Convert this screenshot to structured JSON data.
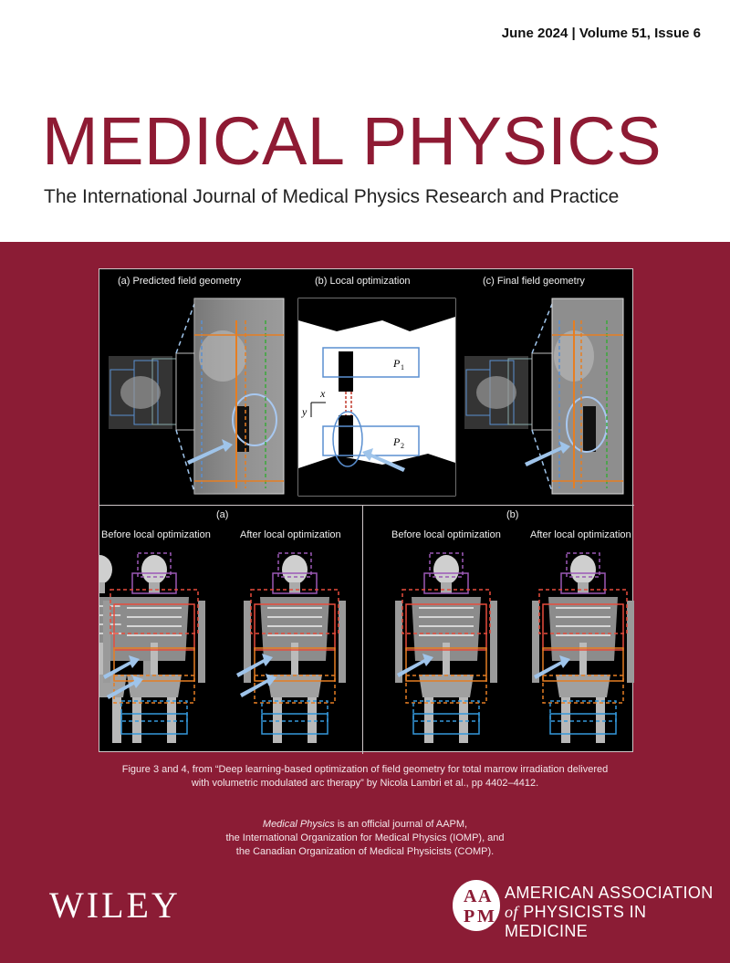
{
  "issue": {
    "text": "June 2024 | Volume 51, Issue 6"
  },
  "journal": {
    "title": "MEDICAL PHYSICS",
    "subtitle": "The International Journal of Medical Physics Research and Practice"
  },
  "figure": {
    "top_panels": [
      {
        "label": "(a)   Predicted field geometry"
      },
      {
        "label": "(b)   Local optimization"
      },
      {
        "label": "(c)   Final field geometry"
      }
    ],
    "local_opt_labels": {
      "p1": "P",
      "p1_sub": "1",
      "p2": "P",
      "p2_sub": "2",
      "x": "x",
      "y": "y"
    },
    "bottom_panels": [
      {
        "label": "(a)",
        "before": "Before local optimization",
        "after": "After local optimization"
      },
      {
        "label": "(b)",
        "before": "Before local optimization",
        "after": "After local optimization"
      }
    ]
  },
  "caption": {
    "line1": "Figure 3 and 4, from “Deep learning-based optimization of field geometry for total marrow irradiation delivered",
    "line2": "with volumetric modulated arc therapy” by Nicola Lambri et al., pp 4402–4412."
  },
  "statement": {
    "journal_italic": "Medical Physics",
    "line1_rest": " is an official journal of AAPM,",
    "line2": "the International Organization for Medical Physics (IOMP), and",
    "line3": "the Canadian Organization of Medical Physicists (COMP)."
  },
  "publisher": {
    "name": "WILEY"
  },
  "aapm": {
    "logo_letters": "AAPM",
    "line1": "AMERICAN ASSOCIATION",
    "line2_italic": "of",
    "line2_rest": " PHYSICISTS IN MEDICINE"
  },
  "colors": {
    "brand": "#8b1c35",
    "title": "#8e1a33"
  }
}
